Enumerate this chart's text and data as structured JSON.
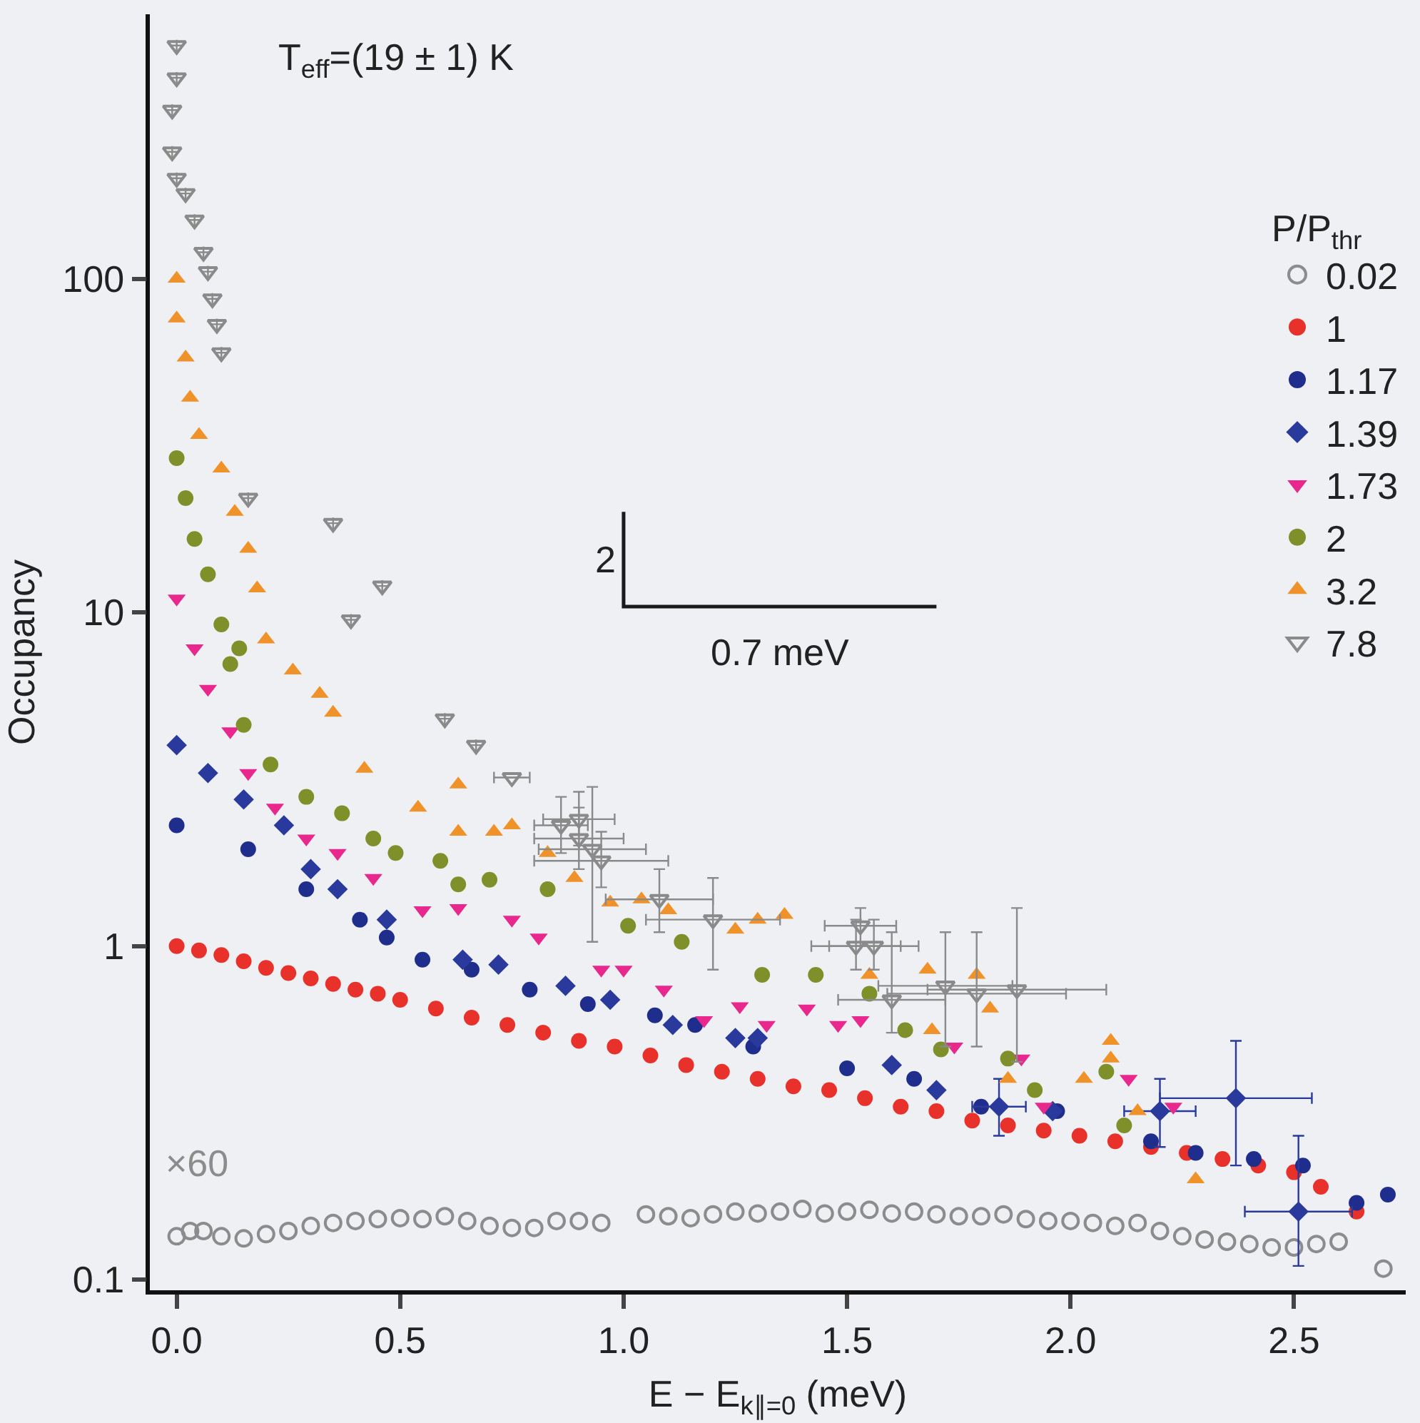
{
  "chart_data": {
    "type": "scatter",
    "xlabel": "E − E$_{k∥=0}$ (meV)",
    "ylabel": "Occupancy",
    "legend_title": "P/P$_{thr}$",
    "legend": "top right",
    "log": "y",
    "grid": false,
    "xlim": [
      -0.06,
      2.75
    ],
    "xticks": [
      {
        "value": 0,
        "label": "0.0"
      },
      {
        "value": 0.5,
        "label": "0.5"
      },
      {
        "value": 1,
        "label": "1.0"
      },
      {
        "value": 1.5,
        "label": "1.5"
      },
      {
        "value": 2,
        "label": "2.0"
      },
      {
        "value": 2.5,
        "label": "2.5"
      }
    ],
    "ylim": [
      0.093,
      620
    ],
    "yticks": [
      0.1,
      1,
      10,
      100
    ],
    "annotations": [
      "T$_{eff}$=(19 ± 1) K",
      "×60",
      "2",
      "0.7 meV"
    ],
    "series": [
      {
        "name": "0.02",
        "color": "#8c8c8c",
        "marker": "circle-open",
        "x": [
          0.0,
          0.03,
          0.06,
          0.1,
          0.15,
          0.2,
          0.25,
          0.3,
          0.35,
          0.4,
          0.45,
          0.5,
          0.55,
          0.6,
          0.65,
          0.7,
          0.75,
          0.8,
          0.85,
          0.9,
          0.95,
          1.05,
          1.1,
          1.15,
          1.2,
          1.25,
          1.3,
          1.35,
          1.4,
          1.45,
          1.5,
          1.55,
          1.6,
          1.65,
          1.7,
          1.75,
          1.8,
          1.85,
          1.9,
          1.95,
          2.0,
          2.05,
          2.1,
          2.15,
          2.2,
          2.25,
          2.3,
          2.35,
          2.4,
          2.45,
          2.5,
          2.55,
          2.6,
          2.7
        ],
        "values": [
          0.135,
          0.14,
          0.14,
          0.135,
          0.133,
          0.137,
          0.14,
          0.145,
          0.148,
          0.15,
          0.152,
          0.153,
          0.152,
          0.155,
          0.15,
          0.145,
          0.143,
          0.143,
          0.15,
          0.15,
          0.148,
          0.157,
          0.155,
          0.153,
          0.157,
          0.16,
          0.158,
          0.16,
          0.163,
          0.158,
          0.16,
          0.162,
          0.158,
          0.16,
          0.157,
          0.155,
          0.155,
          0.157,
          0.152,
          0.15,
          0.15,
          0.148,
          0.145,
          0.148,
          0.14,
          0.135,
          0.132,
          0.13,
          0.128,
          0.125,
          0.125,
          0.128,
          0.13,
          0.108
        ]
      },
      {
        "name": "1",
        "color": "#e8312a",
        "marker": "circle",
        "x": [
          0,
          0.05,
          0.1,
          0.15,
          0.2,
          0.25,
          0.3,
          0.35,
          0.4,
          0.45,
          0.5,
          0.58,
          0.66,
          0.74,
          0.82,
          0.9,
          0.98,
          1.06,
          1.14,
          1.22,
          1.3,
          1.38,
          1.46,
          1.54,
          1.62,
          1.7,
          1.78,
          1.86,
          1.94,
          2.02,
          2.1,
          2.18,
          2.26,
          2.34,
          2.42,
          2.5,
          2.56,
          2.64
        ],
        "values": [
          1.0,
          0.97,
          0.94,
          0.9,
          0.86,
          0.83,
          0.8,
          0.77,
          0.74,
          0.72,
          0.69,
          0.65,
          0.61,
          0.58,
          0.55,
          0.52,
          0.5,
          0.47,
          0.44,
          0.42,
          0.4,
          0.38,
          0.37,
          0.35,
          0.33,
          0.32,
          0.3,
          0.29,
          0.28,
          0.27,
          0.26,
          0.25,
          0.24,
          0.23,
          0.22,
          0.21,
          0.19,
          0.16
        ]
      },
      {
        "name": "1.17",
        "color": "#1f2d8c",
        "marker": "circle",
        "x": [
          0,
          0.16,
          0.29,
          0.41,
          0.47,
          0.55,
          0.66,
          0.79,
          0.92,
          1.07,
          1.16,
          1.29,
          1.5,
          1.65,
          1.8,
          1.97,
          2.18,
          2.28,
          2.41,
          2.52,
          2.64,
          2.71
        ],
        "values": [
          2.3,
          1.95,
          1.48,
          1.2,
          1.06,
          0.91,
          0.85,
          0.74,
          0.67,
          0.62,
          0.58,
          0.5,
          0.43,
          0.4,
          0.33,
          0.32,
          0.26,
          0.24,
          0.23,
          0.22,
          0.17,
          0.18
        ]
      },
      {
        "name": "1.39",
        "color": "#2a3a9c",
        "marker": "diamond",
        "x": [
          0,
          0.07,
          0.15,
          0.24,
          0.3,
          0.36,
          0.47,
          0.64,
          0.72,
          0.87,
          0.97,
          1.11,
          1.25,
          1.3,
          1.6,
          1.7,
          1.84,
          1.96,
          2.2,
          2.37,
          2.51
        ],
        "values": [
          4.0,
          3.3,
          2.75,
          2.3,
          1.7,
          1.48,
          1.2,
          0.91,
          0.88,
          0.76,
          0.69,
          0.58,
          0.53,
          0.53,
          0.44,
          0.37,
          0.33,
          0.32,
          0.32,
          0.35,
          0.16
        ],
        "errors": [
          null,
          null,
          null,
          null,
          null,
          null,
          null,
          null,
          null,
          null,
          null,
          null,
          null,
          null,
          null,
          null,
          [
            0.27,
            0.4
          ],
          null,
          [
            0.25,
            0.4
          ],
          [
            0.22,
            0.52
          ],
          [
            0.11,
            0.27
          ]
        ],
        "xerrors": [
          null,
          null,
          null,
          null,
          null,
          null,
          null,
          null,
          null,
          null,
          null,
          null,
          null,
          null,
          null,
          null,
          0.06,
          null,
          0.08,
          0.17,
          0.12
        ]
      },
      {
        "name": "1.73",
        "color": "#e8288c",
        "marker": "triangle-down",
        "x": [
          0,
          0.04,
          0.07,
          0.12,
          0.16,
          0.22,
          0.29,
          0.36,
          0.44,
          0.55,
          0.63,
          0.75,
          0.81,
          0.95,
          1.0,
          1.09,
          1.18,
          1.26,
          1.32,
          1.41,
          1.48,
          1.53,
          1.74,
          1.89,
          1.94,
          2.13,
          2.23
        ],
        "values": [
          11,
          7.8,
          5.9,
          4.4,
          3.3,
          2.6,
          2.1,
          1.9,
          1.6,
          1.28,
          1.3,
          1.2,
          1.06,
          0.85,
          0.85,
          0.74,
          0.6,
          0.66,
          0.58,
          0.65,
          0.58,
          0.6,
          0.5,
          0.46,
          0.33,
          0.4,
          0.33
        ]
      },
      {
        "name": "2",
        "color": "#7f8f2a",
        "marker": "circle",
        "x": [
          0,
          0.02,
          0.04,
          0.07,
          0.1,
          0.12,
          0.14,
          0.15,
          0.21,
          0.29,
          0.37,
          0.44,
          0.49,
          0.59,
          0.63,
          0.7,
          0.83,
          1.01,
          1.13,
          1.31,
          1.43,
          1.55,
          1.63,
          1.71,
          1.86,
          1.92,
          2.08,
          2.12
        ],
        "values": [
          29,
          22,
          16.6,
          13,
          9.2,
          7,
          7.8,
          4.6,
          3.5,
          2.8,
          2.5,
          2.1,
          1.9,
          1.8,
          1.53,
          1.58,
          1.48,
          1.15,
          1.03,
          0.82,
          0.82,
          0.72,
          0.56,
          0.49,
          0.46,
          0.37,
          0.42,
          0.29
        ]
      },
      {
        "name": "3.2",
        "color": "#f0922a",
        "marker": "triangle-up",
        "x": [
          0,
          0.0,
          0.02,
          0.03,
          0.05,
          0.1,
          0.13,
          0.16,
          0.18,
          0.2,
          0.26,
          0.32,
          0.35,
          0.42,
          0.54,
          0.63,
          0.63,
          0.71,
          0.75,
          0.83,
          0.89,
          0.97,
          1.04,
          1.1,
          1.25,
          1.3,
          1.36,
          1.55,
          1.68,
          1.69,
          1.79,
          1.82,
          1.86,
          2.03,
          2.09,
          2.09,
          2.15,
          2.28
        ],
        "values": [
          100,
          76,
          58,
          44,
          34,
          27,
          20,
          15.5,
          11.8,
          8.3,
          6.7,
          5.7,
          5.0,
          3.4,
          2.6,
          3.05,
          2.2,
          2.2,
          2.3,
          1.9,
          1.6,
          1.35,
          1.38,
          1.28,
          1.12,
          1.2,
          1.24,
          0.82,
          0.85,
          0.56,
          0.82,
          0.65,
          0.4,
          0.4,
          0.52,
          0.46,
          0.32,
          0.2
        ]
      },
      {
        "name": "7.8",
        "color": "#8a8a8a",
        "marker": "triangle-down-open",
        "x": [
          0.0,
          0.0,
          -0.01,
          -0.01,
          0.0,
          0.02,
          0.04,
          0.06,
          0.07,
          0.08,
          0.09,
          0.1,
          0.16,
          0.35,
          0.39,
          0.46,
          0.6,
          0.67,
          0.75,
          0.86,
          0.9,
          0.9,
          0.93,
          0.95,
          1.08,
          1.2,
          1.53,
          1.52,
          1.56,
          1.6,
          1.72,
          1.79,
          1.88
        ],
        "values": [
          500,
          400,
          320,
          240,
          200,
          180,
          150,
          120,
          105,
          87,
          73,
          60,
          22,
          18.5,
          9.5,
          12,
          4.8,
          4.0,
          3.2,
          2.3,
          2.4,
          2.1,
          1.95,
          1.8,
          1.38,
          1.2,
          1.15,
          1.0,
          1.0,
          0.69,
          0.76,
          0.72,
          0.74
        ],
        "errors": [
          null,
          null,
          null,
          null,
          null,
          null,
          null,
          null,
          null,
          null,
          null,
          null,
          null,
          null,
          null,
          null,
          null,
          null,
          null,
          [
            1.9,
            2.8
          ],
          [
            2.0,
            2.9
          ],
          [
            1.7,
            2.6
          ],
          [
            1.03,
            3.0
          ],
          [
            1.5,
            2.2
          ],
          [
            1.1,
            1.7
          ],
          [
            0.85,
            1.6
          ],
          [
            1.0,
            1.3
          ],
          [
            0.85,
            1.2
          ],
          [
            0.85,
            1.2
          ],
          [
            0.55,
            1.1
          ],
          [
            0.5,
            1.1
          ],
          [
            0.5,
            1.1
          ],
          [
            0.45,
            1.3
          ]
        ],
        "xerrors": [
          null,
          null,
          null,
          null,
          null,
          null,
          null,
          null,
          null,
          null,
          null,
          null,
          null,
          null,
          null,
          null,
          null,
          null,
          0.04,
          0.06,
          0.08,
          0.1,
          0.12,
          0.15,
          0.12,
          0.15,
          0.08,
          0.1,
          0.1,
          0.12,
          0.15,
          0.2,
          0.2
        ]
      },
      {
        "type": "line",
        "color": "#1a1a1a",
        "x": [
          1.0,
          1.0,
          1.7
        ],
        "values": [
          20,
          10.4,
          10.4
        ]
      }
    ]
  }
}
